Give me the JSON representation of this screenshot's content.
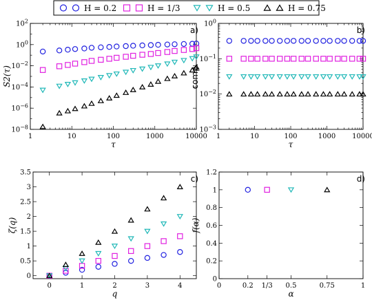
{
  "legend": {
    "entries": [
      {
        "label": "H = 0.2",
        "marker": "circle",
        "color": "#2020e0"
      },
      {
        "label": "H = 1/3",
        "marker": "square",
        "color": "#e020e0"
      },
      {
        "label": "H = 0.5",
        "marker": "triangle-down",
        "color": "#20b8b8"
      },
      {
        "label": "H = 0.75",
        "marker": "triangle-up",
        "color": "#000000"
      }
    ]
  },
  "chart_data": [
    {
      "panel": "a)",
      "type": "scatter",
      "ylabel": "S2(τ)",
      "xlabel": "τ",
      "xscale": "log",
      "yscale": "log",
      "xlim": [
        1,
        10000
      ],
      "ylim": [
        1e-08,
        100
      ],
      "xticks": [
        "1",
        "10",
        "100",
        "1000",
        "10000"
      ],
      "yticks": [
        "10^-8",
        "10^-6",
        "10^-4",
        "10^-2",
        "10^0",
        "10^2"
      ],
      "x": [
        2,
        5,
        8,
        12,
        20,
        30,
        50,
        80,
        120,
        200,
        300,
        500,
        800,
        1200,
        2000,
        3000,
        5000,
        8000,
        10000
      ],
      "series": [
        {
          "name": "H = 0.2",
          "values": [
            0.22,
            0.28,
            0.33,
            0.38,
            0.43,
            0.5,
            0.55,
            0.6,
            0.66,
            0.72,
            0.78,
            0.84,
            0.9,
            0.96,
            1.02,
            1.08,
            1.14,
            1.2,
            1.25
          ]
        },
        {
          "name": "H = 1/3",
          "values": [
            0.004,
            0.009,
            0.012,
            0.016,
            0.022,
            0.029,
            0.037,
            0.046,
            0.057,
            0.071,
            0.088,
            0.11,
            0.13,
            0.16,
            0.2,
            0.25,
            0.31,
            0.38,
            0.46
          ]
        },
        {
          "name": "H = 0.5",
          "values": [
            5e-05,
            0.00012,
            0.00018,
            0.00025,
            0.00038,
            0.00055,
            0.0008,
            0.0012,
            0.0017,
            0.0025,
            0.0036,
            0.005,
            0.0072,
            0.01,
            0.015,
            0.022,
            0.032,
            0.048,
            0.07
          ]
        },
        {
          "name": "H = 0.75",
          "values": [
            1.8e-08,
            3.5e-07,
            5.5e-07,
            9e-07,
            1.6e-06,
            2.8e-06,
            5e-06,
            9e-06,
            1.6e-05,
            3e-05,
            5.5e-05,
            0.0001,
            0.00018,
            0.00034,
            0.00062,
            0.0011,
            0.0021,
            0.004,
            0.0075
          ]
        }
      ]
    },
    {
      "panel": "b)",
      "type": "scatter",
      "ylabel": "comp.",
      "xlabel": "τ",
      "xscale": "log",
      "yscale": "log",
      "xlim": [
        1,
        10000
      ],
      "ylim": [
        0.001,
        1
      ],
      "xticks": [
        "1",
        "10",
        "100",
        "1000",
        "10000"
      ],
      "yticks": [
        "10^-3",
        "10^-2",
        "10^-1",
        "10^0"
      ],
      "x": [
        2,
        5,
        8,
        12,
        20,
        30,
        50,
        80,
        120,
        200,
        300,
        500,
        800,
        1200,
        2000,
        3000,
        5000,
        8000,
        10000
      ],
      "series": [
        {
          "name": "H = 0.2",
          "values": [
            0.32,
            0.32,
            0.32,
            0.32,
            0.32,
            0.32,
            0.32,
            0.32,
            0.32,
            0.32,
            0.32,
            0.32,
            0.32,
            0.32,
            0.32,
            0.32,
            0.32,
            0.32,
            0.32
          ]
        },
        {
          "name": "H = 1/3",
          "values": [
            0.1,
            0.1,
            0.1,
            0.1,
            0.1,
            0.1,
            0.1,
            0.1,
            0.1,
            0.1,
            0.1,
            0.1,
            0.1,
            0.1,
            0.1,
            0.1,
            0.1,
            0.1,
            0.1
          ]
        },
        {
          "name": "H = 0.5",
          "values": [
            0.031,
            0.031,
            0.031,
            0.031,
            0.031,
            0.031,
            0.031,
            0.031,
            0.031,
            0.031,
            0.031,
            0.031,
            0.031,
            0.031,
            0.031,
            0.031,
            0.031,
            0.031,
            0.031
          ]
        },
        {
          "name": "H = 0.75",
          "values": [
            0.01,
            0.01,
            0.01,
            0.01,
            0.01,
            0.01,
            0.01,
            0.01,
            0.01,
            0.01,
            0.01,
            0.01,
            0.01,
            0.01,
            0.01,
            0.01,
            0.01,
            0.01,
            0.01
          ]
        }
      ]
    },
    {
      "panel": "c)",
      "type": "scatter",
      "ylabel": "ζ(q)",
      "xlabel": "q",
      "xlim": [
        -0.5,
        4.5
      ],
      "ylim": [
        -0.1,
        3.5
      ],
      "xticks": [
        "0",
        "1",
        "2",
        "3",
        "4"
      ],
      "yticks": [
        "0",
        "0.5",
        "1",
        "1.5",
        "2",
        "2.5",
        "3",
        "3.5"
      ],
      "x": [
        0,
        0.5,
        1,
        1.5,
        2,
        2.5,
        3,
        3.5,
        4
      ],
      "series": [
        {
          "name": "H = 0.2",
          "values": [
            0,
            0.1,
            0.2,
            0.3,
            0.4,
            0.5,
            0.6,
            0.7,
            0.8
          ]
        },
        {
          "name": "H = 1/3",
          "values": [
            0,
            0.167,
            0.333,
            0.5,
            0.667,
            0.833,
            1.0,
            1.167,
            1.333
          ]
        },
        {
          "name": "H = 0.5",
          "values": [
            0,
            0.25,
            0.5,
            0.75,
            1.0,
            1.25,
            1.5,
            1.75,
            2.0
          ]
        },
        {
          "name": "H = 0.75",
          "values": [
            0,
            0.375,
            0.75,
            1.125,
            1.5,
            1.875,
            2.25,
            2.625,
            3.0
          ]
        }
      ]
    },
    {
      "panel": "d)",
      "type": "scatter",
      "ylabel": "f(α)",
      "xlabel": "α",
      "xlim": [
        0,
        1
      ],
      "ylim": [
        0,
        1.2
      ],
      "xticks": [
        "0",
        "0.2",
        "1/3",
        "0.5",
        "0.75",
        "1"
      ],
      "xtick_values": [
        0,
        0.2,
        0.3333,
        0.5,
        0.75,
        1
      ],
      "yticks": [
        "0",
        "0.2",
        "0.4",
        "0.6",
        "0.8",
        "1",
        "1.2"
      ],
      "series": [
        {
          "name": "H = 0.2",
          "x": [
            0.2
          ],
          "values": [
            1
          ]
        },
        {
          "name": "H = 1/3",
          "x": [
            0.3333
          ],
          "values": [
            1
          ]
        },
        {
          "name": "H = 0.5",
          "x": [
            0.5
          ],
          "values": [
            1
          ]
        },
        {
          "name": "H = 0.75",
          "x": [
            0.75
          ],
          "values": [
            1
          ]
        }
      ]
    }
  ]
}
